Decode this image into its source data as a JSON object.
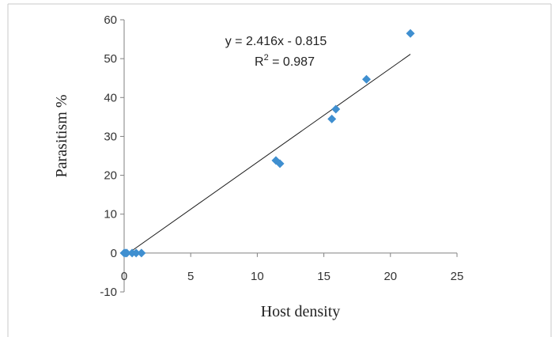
{
  "chart_data": {
    "type": "scatter",
    "title": "",
    "xlabel": "Host density",
    "ylabel": "Parasitism %",
    "xlim": [
      0,
      25
    ],
    "ylim": [
      -10,
      60
    ],
    "x_ticks": [
      0,
      5,
      10,
      15,
      20,
      25
    ],
    "y_ticks": [
      -10,
      0,
      10,
      20,
      30,
      40,
      50,
      60
    ],
    "grid": false,
    "legend": "none",
    "series": [
      {
        "marker": "diamond",
        "color": "#3f8fd0",
        "points": [
          {
            "x": 0.0,
            "y": 0.0
          },
          {
            "x": 0.1,
            "y": 0.0
          },
          {
            "x": 0.2,
            "y": 0.0
          },
          {
            "x": 0.6,
            "y": 0.0
          },
          {
            "x": 0.9,
            "y": 0.0
          },
          {
            "x": 1.3,
            "y": 0.0
          },
          {
            "x": 11.4,
            "y": 23.8
          },
          {
            "x": 11.7,
            "y": 23.0
          },
          {
            "x": 15.6,
            "y": 34.5
          },
          {
            "x": 15.9,
            "y": 37.0
          },
          {
            "x": 18.2,
            "y": 44.7
          },
          {
            "x": 21.5,
            "y": 56.5
          }
        ]
      }
    ],
    "trendline": {
      "slope": 2.416,
      "intercept": -0.815,
      "x_range": [
        0,
        21.5
      ],
      "equation_label": "y = 2.416x - 0.815",
      "r2_prefix": "R",
      "r2_superscript": "2",
      "r2_value_text": " = 0.987"
    }
  }
}
